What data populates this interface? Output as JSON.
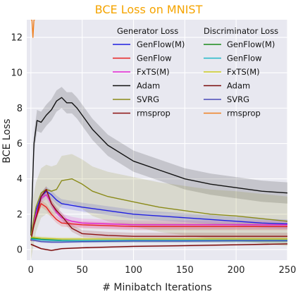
{
  "chart_data": {
    "type": "line",
    "title": "BCE Loss on MNIST",
    "xlabel": "# Minibatch Iterations",
    "ylabel": "BCE Loss",
    "xlim": [
      -4,
      250
    ],
    "ylim": [
      -0.6,
      13
    ],
    "xticks": [
      "0",
      "50",
      "100",
      "150",
      "200",
      "250"
    ],
    "yticks": [
      "0",
      "2",
      "4",
      "6",
      "8",
      "10",
      "12"
    ],
    "grid": true,
    "legend": {
      "placement": "top-right",
      "generator_header": "Generator Loss",
      "discriminator_header": "Discriminator Loss"
    },
    "series": [
      {
        "name": "GenFlow(M)",
        "group": "generator",
        "color": "#1f1fe0",
        "band": 0.25,
        "x": [
          0,
          5,
          10,
          15,
          20,
          25,
          30,
          40,
          50,
          75,
          100,
          125,
          150,
          175,
          200,
          225,
          250
        ],
        "y": [
          0.8,
          2.2,
          3.0,
          3.3,
          3.1,
          2.8,
          2.6,
          2.5,
          2.4,
          2.2,
          2.0,
          1.9,
          1.8,
          1.7,
          1.6,
          1.5,
          1.45
        ]
      },
      {
        "name": "GenFlow",
        "group": "generator",
        "color": "#e82020",
        "band": 0.2,
        "x": [
          0,
          5,
          10,
          15,
          20,
          25,
          30,
          40,
          50,
          75,
          100,
          125,
          150,
          175,
          200,
          225,
          250
        ],
        "y": [
          0.8,
          1.8,
          2.6,
          2.4,
          2.0,
          1.7,
          1.5,
          1.45,
          1.4,
          1.35,
          1.3,
          1.3,
          1.3,
          1.3,
          1.3,
          1.3,
          1.3
        ]
      },
      {
        "name": "FxTS(M)",
        "group": "generator",
        "color": "#e020d0",
        "band": 0.25,
        "x": [
          0,
          5,
          10,
          15,
          20,
          25,
          30,
          40,
          50,
          75,
          100,
          125,
          150,
          175,
          200,
          225,
          250
        ],
        "y": [
          0.8,
          2.0,
          2.9,
          3.1,
          2.6,
          2.1,
          1.8,
          1.6,
          1.5,
          1.45,
          1.4,
          1.4,
          1.4,
          1.4,
          1.4,
          1.4,
          1.4
        ]
      },
      {
        "name": "Adam",
        "group": "generator",
        "color": "#111111",
        "band": 0.6,
        "x": [
          0,
          3,
          6,
          10,
          15,
          20,
          25,
          30,
          35,
          40,
          45,
          50,
          60,
          75,
          100,
          125,
          150,
          175,
          200,
          225,
          250
        ],
        "y": [
          0.8,
          6.0,
          7.3,
          7.2,
          7.6,
          7.9,
          8.4,
          8.6,
          8.3,
          8.3,
          8.0,
          7.6,
          6.8,
          5.9,
          5.0,
          4.5,
          4.0,
          3.7,
          3.5,
          3.3,
          3.2
        ]
      },
      {
        "name": "SVRG",
        "group": "generator",
        "color": "#8a8a18",
        "band": 1.4,
        "x": [
          0,
          5,
          10,
          15,
          20,
          25,
          30,
          40,
          50,
          60,
          75,
          100,
          125,
          150,
          175,
          200,
          225,
          250
        ],
        "y": [
          0.8,
          2.4,
          3.2,
          3.4,
          3.3,
          3.4,
          3.9,
          4.0,
          3.7,
          3.3,
          3.0,
          2.7,
          2.4,
          2.2,
          2.0,
          1.9,
          1.75,
          1.6
        ]
      },
      {
        "name": "rmsprop",
        "group": "generator",
        "color": "#8b1010",
        "band": 0.2,
        "x": [
          0,
          3,
          6,
          10,
          15,
          20,
          25,
          30,
          40,
          50,
          75,
          100,
          125,
          150,
          175,
          200,
          225,
          250
        ],
        "y": [
          0.5,
          1.4,
          2.0,
          3.0,
          3.4,
          2.6,
          2.2,
          1.9,
          1.2,
          0.9,
          0.8,
          0.75,
          0.75,
          0.75,
          0.75,
          0.75,
          0.75,
          0.75
        ]
      },
      {
        "name": "GenFlow(M)",
        "group": "discriminator",
        "color": "#1a8a1a",
        "band": 0.1,
        "x": [
          0,
          10,
          20,
          30,
          50,
          100,
          150,
          200,
          250
        ],
        "y": [
          0.65,
          0.58,
          0.55,
          0.52,
          0.5,
          0.5,
          0.5,
          0.5,
          0.5
        ]
      },
      {
        "name": "GenFlow",
        "group": "discriminator",
        "color": "#20b8c8",
        "band": 0.1,
        "x": [
          0,
          10,
          20,
          30,
          50,
          100,
          150,
          200,
          250
        ],
        "y": [
          0.6,
          0.55,
          0.52,
          0.5,
          0.5,
          0.52,
          0.52,
          0.52,
          0.52
        ]
      },
      {
        "name": "FxTS(M)",
        "group": "discriminator",
        "color": "#c8c820",
        "band": 0.1,
        "x": [
          0,
          10,
          20,
          30,
          50,
          100,
          150,
          200,
          250
        ],
        "y": [
          0.7,
          0.65,
          0.62,
          0.6,
          0.6,
          0.6,
          0.6,
          0.6,
          0.6
        ]
      },
      {
        "name": "Adam",
        "group": "discriminator",
        "color": "#7a0a0a",
        "band": 0.05,
        "x": [
          0,
          10,
          20,
          30,
          50,
          100,
          150,
          200,
          250
        ],
        "y": [
          0.3,
          0.05,
          -0.05,
          0.05,
          0.1,
          0.18,
          0.22,
          0.27,
          0.32
        ]
      },
      {
        "name": "SVRG",
        "group": "discriminator",
        "color": "#4a4ab8",
        "band": 0.08,
        "x": [
          0,
          10,
          20,
          30,
          50,
          100,
          150,
          200,
          250
        ],
        "y": [
          0.55,
          0.45,
          0.42,
          0.42,
          0.45,
          0.48,
          0.48,
          0.5,
          0.5
        ]
      },
      {
        "name": "rmsprop",
        "group": "discriminator",
        "color": "#f08020",
        "band": 0.0,
        "x": [
          0,
          1,
          2,
          3,
          4
        ],
        "y": [
          13.0,
          13.0,
          12.0,
          13.0,
          13.0
        ]
      }
    ]
  }
}
